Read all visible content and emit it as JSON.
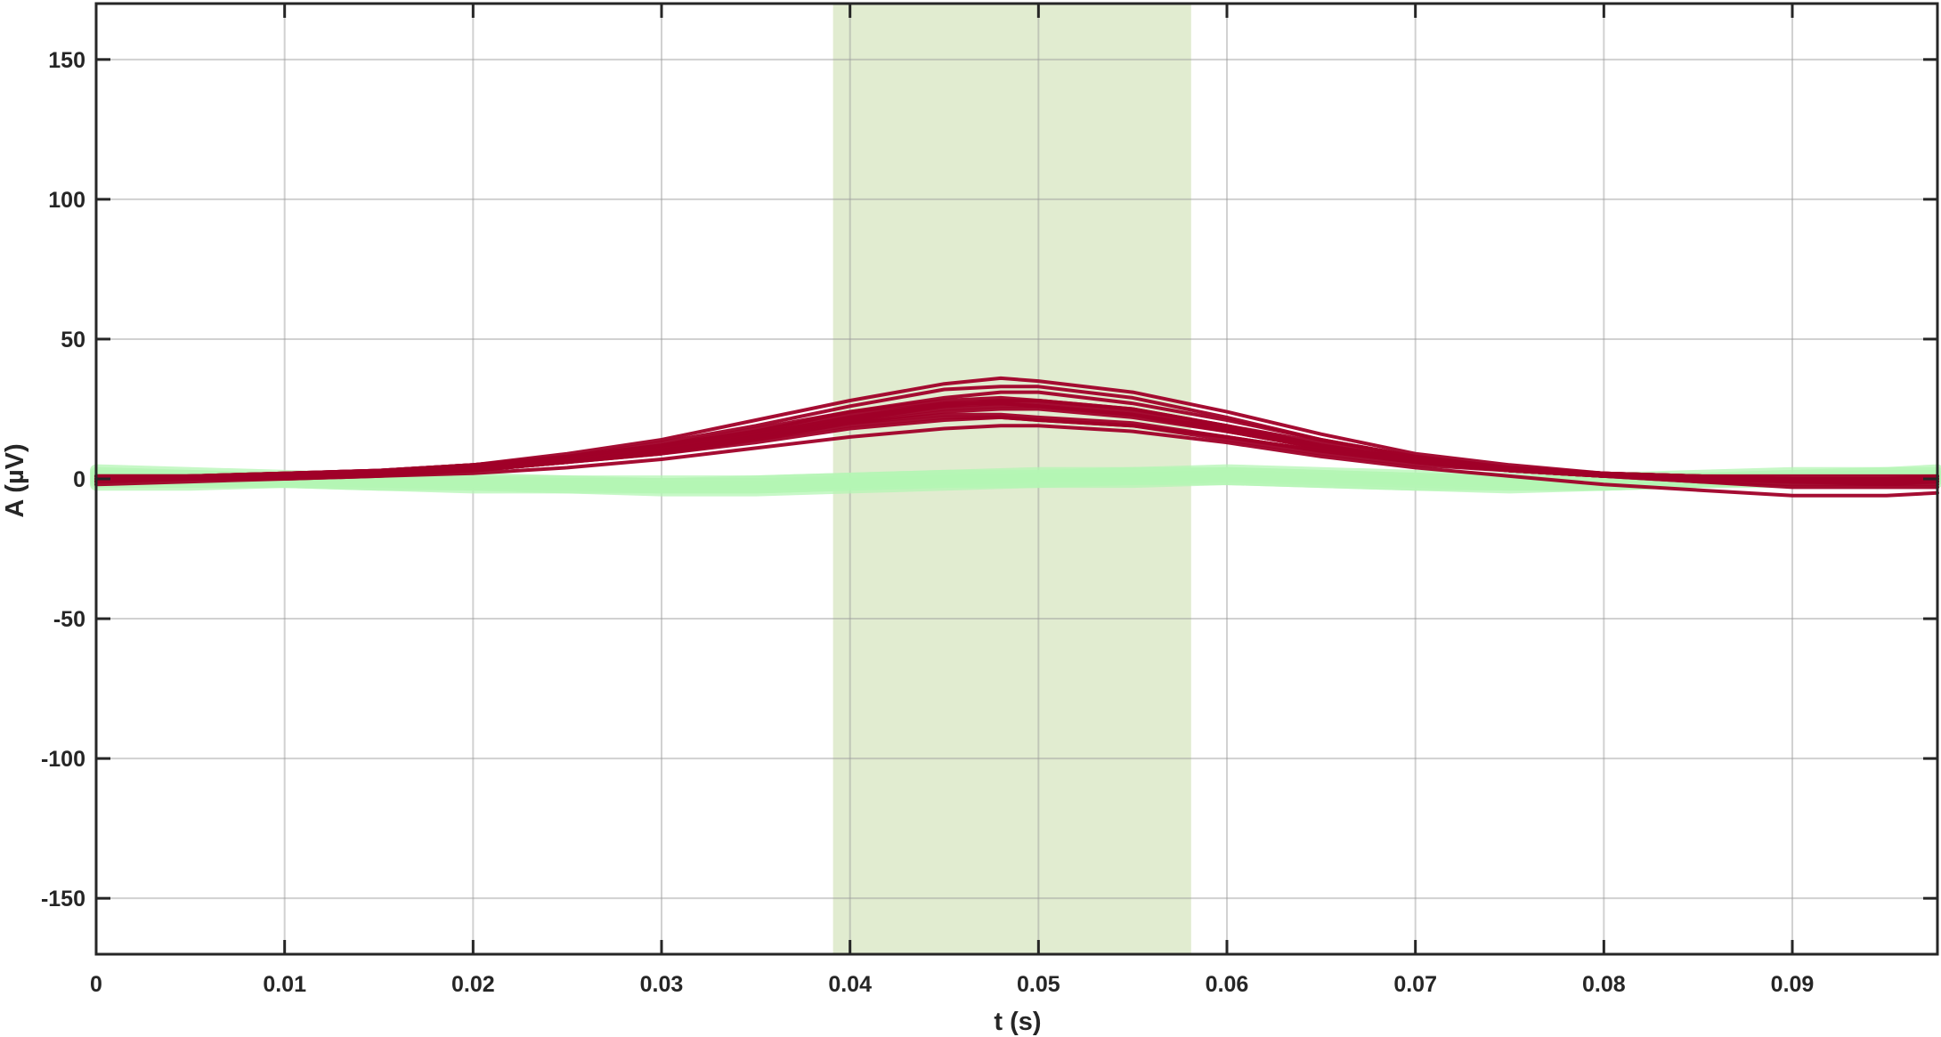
{
  "chart_data": {
    "type": "line",
    "title": "",
    "xlabel": "t (s)",
    "ylabel": "A (µV)",
    "xlim": [
      0,
      0.0977
    ],
    "ylim": [
      -170,
      170
    ],
    "x_ticks": [
      0,
      0.01,
      0.02,
      0.03,
      0.04,
      0.05,
      0.06,
      0.07,
      0.08,
      0.09
    ],
    "x_tick_labels": [
      "0",
      "0.01",
      "0.02",
      "0.03",
      "0.04",
      "0.05",
      "0.06",
      "0.07",
      "0.08",
      "0.09"
    ],
    "y_ticks": [
      -150,
      -100,
      -50,
      0,
      50,
      100,
      150
    ],
    "y_tick_labels": [
      "-150",
      "-100",
      "-50",
      "0",
      "50",
      "100",
      "150"
    ],
    "grid": true,
    "legend": "none",
    "highlight_window": {
      "x_start": 0.0391,
      "x_end": 0.0581,
      "color": "#c9ddaa"
    },
    "colors": {
      "responses": "#a00028",
      "baseline": "#b4f5b4",
      "grid": "#d0d0d0",
      "axis": "#262626"
    },
    "series": [
      {
        "role": "responses",
        "color": "#a00028",
        "x": [
          0,
          0.005,
          0.01,
          0.015,
          0.02,
          0.025,
          0.03,
          0.035,
          0.04,
          0.045,
          0.048,
          0.05,
          0.055,
          0.06,
          0.065,
          0.07,
          0.075,
          0.08,
          0.085,
          0.09,
          0.095,
          0.0977
        ],
        "traces": [
          [
            0,
            1,
            1,
            2,
            4,
            7,
            11,
            16,
            22,
            27,
            28,
            28,
            25,
            19,
            12,
            7,
            4,
            2,
            1,
            0,
            0,
            0
          ],
          [
            -1,
            0,
            1,
            2,
            4,
            6,
            10,
            14,
            20,
            24,
            25,
            25,
            22,
            17,
            11,
            6,
            3,
            1,
            0,
            -1,
            -1,
            -1
          ],
          [
            0,
            1,
            2,
            3,
            5,
            8,
            13,
            19,
            26,
            32,
            33,
            33,
            29,
            22,
            14,
            8,
            4,
            2,
            1,
            0,
            -1,
            0
          ],
          [
            1,
            1,
            2,
            3,
            5,
            9,
            14,
            21,
            28,
            34,
            36,
            35,
            31,
            24,
            16,
            9,
            5,
            2,
            1,
            0,
            0,
            1
          ],
          [
            -1,
            0,
            0,
            1,
            2,
            4,
            7,
            11,
            15,
            18,
            19,
            19,
            17,
            13,
            8,
            4,
            1,
            -2,
            -4,
            -6,
            -6,
            -5
          ],
          [
            0,
            1,
            1,
            2,
            3,
            6,
            10,
            15,
            20,
            23,
            23,
            22,
            20,
            15,
            10,
            6,
            3,
            1,
            0,
            -1,
            -2,
            -1
          ],
          [
            -1,
            0,
            1,
            2,
            4,
            8,
            12,
            17,
            24,
            29,
            31,
            31,
            27,
            21,
            14,
            8,
            4,
            2,
            0,
            -1,
            -1,
            -1
          ],
          [
            0,
            0,
            1,
            2,
            4,
            7,
            11,
            16,
            22,
            26,
            27,
            26,
            23,
            18,
            12,
            7,
            3,
            1,
            0,
            0,
            0,
            0
          ],
          [
            1,
            1,
            1,
            2,
            3,
            6,
            9,
            14,
            19,
            22,
            22,
            21,
            19,
            14,
            9,
            5,
            3,
            1,
            1,
            0,
            0,
            1
          ],
          [
            -2,
            -1,
            0,
            1,
            3,
            6,
            10,
            15,
            21,
            25,
            26,
            26,
            23,
            18,
            12,
            7,
            3,
            1,
            -1,
            -2,
            -2,
            -2
          ],
          [
            0,
            1,
            2,
            3,
            5,
            8,
            12,
            18,
            24,
            28,
            29,
            28,
            25,
            19,
            13,
            7,
            4,
            2,
            1,
            0,
            0,
            0
          ],
          [
            -1,
            0,
            1,
            2,
            4,
            6,
            9,
            13,
            18,
            21,
            22,
            21,
            19,
            15,
            10,
            6,
            3,
            1,
            -1,
            -3,
            -3,
            -3
          ],
          [
            1,
            1,
            2,
            3,
            5,
            8,
            12,
            17,
            23,
            27,
            27,
            26,
            23,
            17,
            11,
            6,
            3,
            2,
            1,
            1,
            1,
            1
          ],
          [
            0,
            0,
            1,
            2,
            3,
            6,
            10,
            15,
            21,
            26,
            28,
            27,
            24,
            19,
            12,
            7,
            4,
            2,
            0,
            -1,
            0,
            0
          ]
        ]
      },
      {
        "role": "baseline",
        "color": "#b4f5b4",
        "x": [
          0,
          0.005,
          0.01,
          0.015,
          0.02,
          0.025,
          0.03,
          0.035,
          0.04,
          0.045,
          0.05,
          0.055,
          0.06,
          0.065,
          0.07,
          0.075,
          0.08,
          0.085,
          0.09,
          0.095,
          0.0977
        ],
        "traces": [
          [
            2,
            1,
            0,
            -1,
            -1,
            -2,
            -2,
            -1,
            0,
            1,
            1,
            1,
            2,
            1,
            0,
            -1,
            -1,
            0,
            1,
            2,
            2
          ],
          [
            -2,
            -2,
            -1,
            -1,
            -2,
            -3,
            -3,
            -3,
            -2,
            -1,
            0,
            0,
            0,
            -1,
            -2,
            -3,
            -2,
            -1,
            0,
            0,
            -1
          ],
          [
            0,
            0,
            -1,
            -2,
            -2,
            -2,
            -3,
            -3,
            -2,
            -1,
            -1,
            0,
            1,
            0,
            -1,
            -2,
            -2,
            -1,
            0,
            1,
            1
          ],
          [
            1,
            1,
            0,
            0,
            -1,
            -1,
            -2,
            -2,
            -1,
            0,
            1,
            2,
            2,
            1,
            0,
            -1,
            -1,
            0,
            0,
            1,
            1
          ],
          [
            -1,
            -1,
            -1,
            -2,
            -3,
            -3,
            -4,
            -4,
            -3,
            -2,
            -1,
            -1,
            0,
            -1,
            -2,
            -2,
            -2,
            -1,
            -1,
            0,
            0
          ],
          [
            3,
            2,
            1,
            0,
            0,
            -1,
            -1,
            -1,
            0,
            1,
            2,
            2,
            3,
            2,
            1,
            0,
            0,
            1,
            2,
            2,
            3
          ]
        ]
      }
    ]
  }
}
